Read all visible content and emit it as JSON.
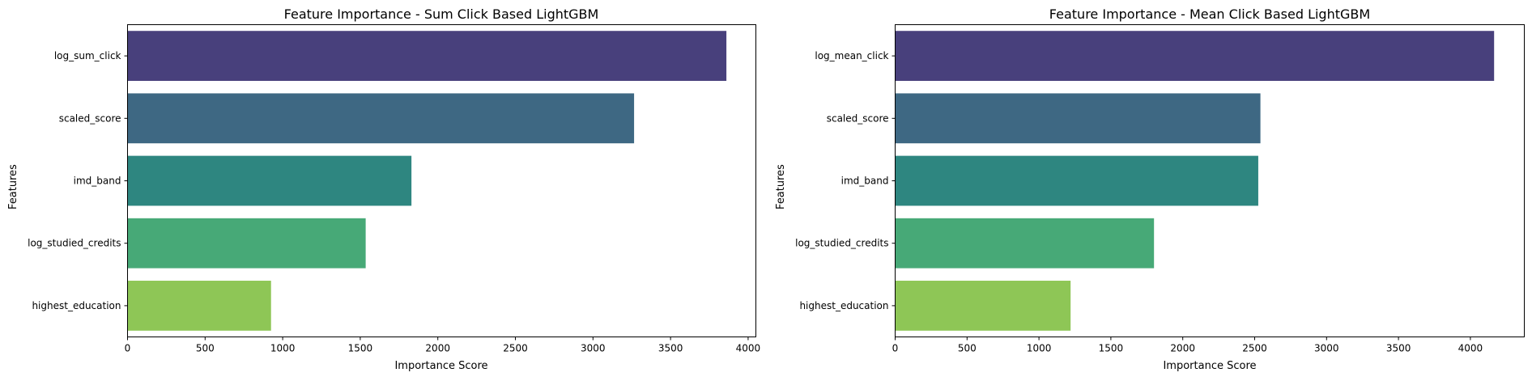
{
  "chart_data": [
    {
      "type": "bar",
      "orientation": "horizontal",
      "title": "Feature Importance - Sum Click Based LightGBM",
      "xlabel": "Importance Score",
      "ylabel": "Features",
      "categories": [
        "log_sum_click",
        "scaled_score",
        "imd_band",
        "log_studied_credits",
        "highest_education"
      ],
      "values": [
        3860,
        3265,
        1830,
        1535,
        925
      ],
      "colors": [
        "#48407C",
        "#3E6883",
        "#2E8680",
        "#47A977",
        "#8EC656"
      ],
      "xlim": [
        0,
        4050
      ],
      "xticks": [
        0,
        500,
        1000,
        1500,
        2000,
        2500,
        3000,
        3500,
        4000
      ],
      "grid": false,
      "legend": "none"
    },
    {
      "type": "bar",
      "orientation": "horizontal",
      "title": "Feature Importance - Mean Click Based LightGBM",
      "xlabel": "Importance Score",
      "ylabel": "Features",
      "categories": [
        "log_mean_click",
        "scaled_score",
        "imd_band",
        "log_studied_credits",
        "highest_education"
      ],
      "values": [
        4165,
        2540,
        2525,
        1800,
        1220
      ],
      "colors": [
        "#48407C",
        "#3E6883",
        "#2E8680",
        "#47A977",
        "#8EC656"
      ],
      "xlim": [
        0,
        4375
      ],
      "xticks": [
        0,
        500,
        1000,
        1500,
        2000,
        2500,
        3000,
        3500,
        4000
      ],
      "grid": false,
      "legend": "none"
    }
  ]
}
